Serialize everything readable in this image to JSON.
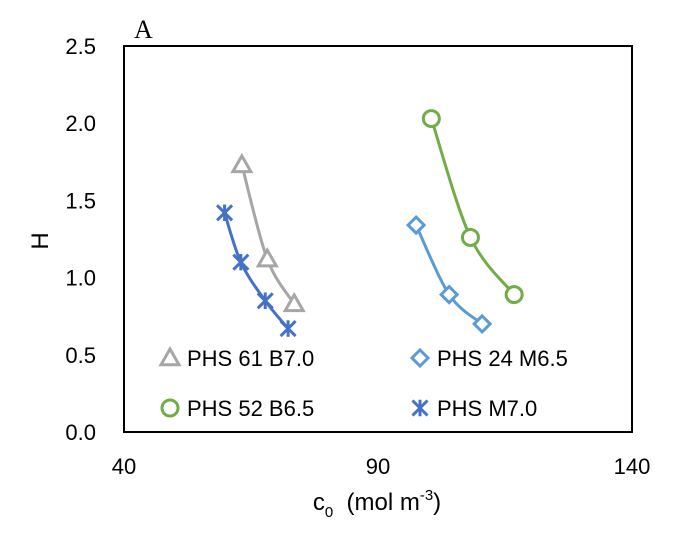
{
  "chart_data": {
    "type": "scatter",
    "panel_label": "A",
    "xlabel": "c",
    "xlabel_sub": "0",
    "xlabel_units_pre": "  (mol m",
    "xlabel_units_sup": "-3",
    "xlabel_units_post": ")",
    "ylabel": "H",
    "xlim": [
      40,
      140
    ],
    "ylim": [
      0.0,
      2.5
    ],
    "xticks": [
      "40",
      "90",
      "140"
    ],
    "yticks": [
      "0.0",
      "0.5",
      "1.0",
      "1.5",
      "2.0",
      "2.5"
    ],
    "grid": false,
    "legend_position": "bottom",
    "series": [
      {
        "name": "PHS 61 B7.0",
        "marker": "triangle",
        "color": "#a6a6a6",
        "x": [
          63.2,
          68.2,
          73.5
        ],
        "y": [
          1.73,
          1.12,
          0.83
        ]
      },
      {
        "name": "PHS 24 M6.5",
        "marker": "diamond",
        "color": "#5b9bd5",
        "x": [
          97.5,
          104.0,
          110.5
        ],
        "y": [
          1.34,
          0.89,
          0.7
        ]
      },
      {
        "name": "PHS 52 B6.5",
        "marker": "circle",
        "color": "#70ad47",
        "x": [
          100.5,
          108.2,
          116.8
        ],
        "y": [
          2.03,
          1.26,
          0.89
        ]
      },
      {
        "name": "PHS M7.0",
        "marker": "asterisk",
        "color": "#4472c4",
        "x": [
          59.8,
          63.0,
          67.8,
          72.3
        ],
        "y": [
          1.42,
          1.1,
          0.85,
          0.67
        ]
      }
    ]
  }
}
